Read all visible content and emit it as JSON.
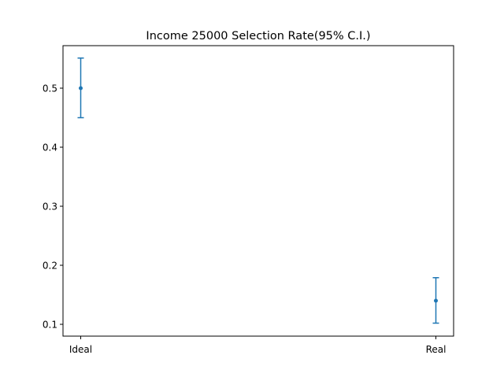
{
  "chart_data": {
    "type": "errorbar",
    "title": "Income 25000 Selection Rate(95% C.I.)",
    "xlabel": "",
    "ylabel": "",
    "categories": [
      "Ideal",
      "Real"
    ],
    "values": [
      0.5,
      0.14
    ],
    "ci_low": [
      0.45,
      0.102
    ],
    "ci_high": [
      0.551,
      0.179
    ],
    "ylim": [
      0.08,
      0.572
    ],
    "yticks": [
      0.1,
      0.2,
      0.3,
      0.4,
      0.5
    ],
    "ytick_labels": [
      "0.1",
      "0.2",
      "0.3",
      "0.4",
      "0.5"
    ],
    "grid": false,
    "legend": "none",
    "color": "#1f77b4"
  }
}
